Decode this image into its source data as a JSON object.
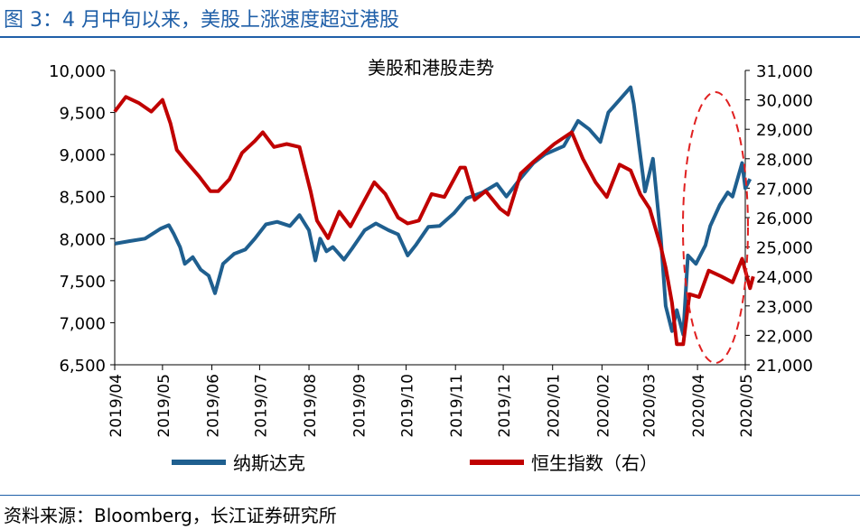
{
  "figure_title": "图 3：4 月中旬以来，美股上涨速度超过港股",
  "source_note": "资料来源：Bloomberg，长江证券研究所",
  "colors": {
    "title_blue": "#1f5fa8",
    "nasdaq": "#1f5f8f",
    "hsi": "#c00000",
    "annotation": "#e02020"
  },
  "chart_data": {
    "type": "line",
    "title": "美股和港股走势",
    "x_ticks": [
      "2019/04",
      "2019/05",
      "2019/06",
      "2019/07",
      "2019/08",
      "2019/09",
      "2019/10",
      "2019/11",
      "2019/12",
      "2020/01",
      "2020/02",
      "2020/03",
      "2020/04",
      "2020/05"
    ],
    "y_left": {
      "ticks": [
        "10,000",
        "9,500",
        "9,000",
        "8,500",
        "8,000",
        "7,500",
        "7,000",
        "6,500"
      ],
      "lim": [
        6500,
        10000
      ]
    },
    "y_right": {
      "ticks": [
        "31,000",
        "30,000",
        "29,000",
        "28,000",
        "27,000",
        "26,000",
        "25,000",
        "24,000",
        "23,000",
        "22,000",
        "21,000"
      ],
      "lim": [
        21000,
        31000
      ]
    },
    "legend_position": "bottom",
    "annotation": "dashed ellipse highlighting 2020/04–2020/05",
    "series": [
      {
        "name": "纳斯达克",
        "axis": "left",
        "points": [
          [
            "2019-04-01",
            7940
          ],
          [
            "2019-04-10",
            7970
          ],
          [
            "2019-04-20",
            8000
          ],
          [
            "2019-04-30",
            8120
          ],
          [
            "2019-05-05",
            8160
          ],
          [
            "2019-05-08",
            8060
          ],
          [
            "2019-05-12",
            7900
          ],
          [
            "2019-05-15",
            7700
          ],
          [
            "2019-05-20",
            7780
          ],
          [
            "2019-05-25",
            7630
          ],
          [
            "2019-05-30",
            7560
          ],
          [
            "2019-06-03",
            7350
          ],
          [
            "2019-06-08",
            7700
          ],
          [
            "2019-06-15",
            7820
          ],
          [
            "2019-06-22",
            7870
          ],
          [
            "2019-06-28",
            8000
          ],
          [
            "2019-07-05",
            8170
          ],
          [
            "2019-07-12",
            8200
          ],
          [
            "2019-07-20",
            8150
          ],
          [
            "2019-07-26",
            8280
          ],
          [
            "2019-08-01",
            8100
          ],
          [
            "2019-08-05",
            7740
          ],
          [
            "2019-08-08",
            8000
          ],
          [
            "2019-08-12",
            7850
          ],
          [
            "2019-08-16",
            7900
          ],
          [
            "2019-08-23",
            7750
          ],
          [
            "2019-08-28",
            7880
          ],
          [
            "2019-09-05",
            8100
          ],
          [
            "2019-09-12",
            8180
          ],
          [
            "2019-09-20",
            8100
          ],
          [
            "2019-09-26",
            8050
          ],
          [
            "2019-10-02",
            7800
          ],
          [
            "2019-10-07",
            7920
          ],
          [
            "2019-10-15",
            8140
          ],
          [
            "2019-10-22",
            8150
          ],
          [
            "2019-10-31",
            8300
          ],
          [
            "2019-11-08",
            8480
          ],
          [
            "2019-11-18",
            8550
          ],
          [
            "2019-11-27",
            8650
          ],
          [
            "2019-12-03",
            8500
          ],
          [
            "2019-12-12",
            8720
          ],
          [
            "2019-12-20",
            8900
          ],
          [
            "2019-12-27",
            9000
          ],
          [
            "2020-01-08",
            9100
          ],
          [
            "2020-01-17",
            9400
          ],
          [
            "2020-01-24",
            9300
          ],
          [
            "2020-01-31",
            9150
          ],
          [
            "2020-02-05",
            9500
          ],
          [
            "2020-02-12",
            9650
          ],
          [
            "2020-02-19",
            9800
          ],
          [
            "2020-02-21",
            9600
          ],
          [
            "2020-02-25",
            9000
          ],
          [
            "2020-02-28",
            8560
          ],
          [
            "2020-03-04",
            8950
          ],
          [
            "2020-03-09",
            8000
          ],
          [
            "2020-03-12",
            7200
          ],
          [
            "2020-03-16",
            6900
          ],
          [
            "2020-03-19",
            7150
          ],
          [
            "2020-03-23",
            6860
          ],
          [
            "2020-03-26",
            7800
          ],
          [
            "2020-03-31",
            7700
          ],
          [
            "2020-04-06",
            7920
          ],
          [
            "2020-04-09",
            8150
          ],
          [
            "2020-04-15",
            8400
          ],
          [
            "2020-04-20",
            8550
          ],
          [
            "2020-04-23",
            8500
          ],
          [
            "2020-04-29",
            8900
          ],
          [
            "2020-05-01",
            8600
          ],
          [
            "2020-05-04",
            8710
          ]
        ]
      },
      {
        "name": "恒生指数（右）",
        "axis": "right",
        "points": [
          [
            "2019-04-01",
            29600
          ],
          [
            "2019-04-08",
            30100
          ],
          [
            "2019-04-16",
            29900
          ],
          [
            "2019-04-24",
            29600
          ],
          [
            "2019-05-01",
            30000
          ],
          [
            "2019-05-06",
            29200
          ],
          [
            "2019-05-10",
            28300
          ],
          [
            "2019-05-16",
            27900
          ],
          [
            "2019-05-24",
            27400
          ],
          [
            "2019-05-31",
            26900
          ],
          [
            "2019-06-05",
            26900
          ],
          [
            "2019-06-12",
            27300
          ],
          [
            "2019-06-20",
            28200
          ],
          [
            "2019-06-28",
            28600
          ],
          [
            "2019-07-03",
            28900
          ],
          [
            "2019-07-10",
            28400
          ],
          [
            "2019-07-18",
            28500
          ],
          [
            "2019-07-26",
            28400
          ],
          [
            "2019-08-02",
            26900
          ],
          [
            "2019-08-06",
            25900
          ],
          [
            "2019-08-13",
            25300
          ],
          [
            "2019-08-20",
            26200
          ],
          [
            "2019-08-27",
            25700
          ],
          [
            "2019-09-04",
            26500
          ],
          [
            "2019-09-11",
            27200
          ],
          [
            "2019-09-18",
            26800
          ],
          [
            "2019-09-26",
            26000
          ],
          [
            "2019-10-02",
            25800
          ],
          [
            "2019-10-09",
            25900
          ],
          [
            "2019-10-17",
            26800
          ],
          [
            "2019-10-25",
            26700
          ],
          [
            "2019-11-04",
            27700
          ],
          [
            "2019-11-07",
            27700
          ],
          [
            "2019-11-13",
            26600
          ],
          [
            "2019-11-20",
            26900
          ],
          [
            "2019-11-29",
            26300
          ],
          [
            "2019-12-04",
            26100
          ],
          [
            "2019-12-12",
            27500
          ],
          [
            "2019-12-20",
            27900
          ],
          [
            "2020-01-02",
            28500
          ],
          [
            "2020-01-13",
            28900
          ],
          [
            "2020-01-20",
            28000
          ],
          [
            "2020-01-28",
            27200
          ],
          [
            "2020-02-04",
            26700
          ],
          [
            "2020-02-12",
            27800
          ],
          [
            "2020-02-19",
            27600
          ],
          [
            "2020-02-25",
            26800
          ],
          [
            "2020-03-02",
            26300
          ],
          [
            "2020-03-09",
            25000
          ],
          [
            "2020-03-12",
            24300
          ],
          [
            "2020-03-16",
            23100
          ],
          [
            "2020-03-19",
            21700
          ],
          [
            "2020-03-23",
            21700
          ],
          [
            "2020-03-27",
            23400
          ],
          [
            "2020-04-02",
            23300
          ],
          [
            "2020-04-08",
            24200
          ],
          [
            "2020-04-16",
            24000
          ],
          [
            "2020-04-23",
            23800
          ],
          [
            "2020-04-29",
            24600
          ],
          [
            "2020-05-04",
            23600
          ],
          [
            "2020-05-06",
            24000
          ]
        ]
      }
    ]
  }
}
